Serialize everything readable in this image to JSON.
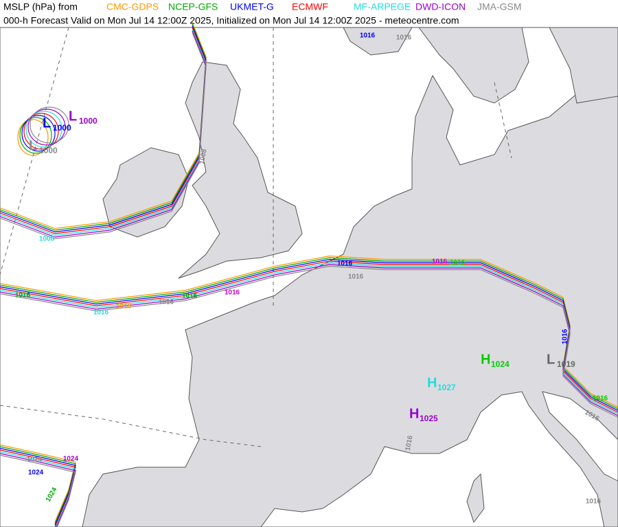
{
  "header": {
    "title": "MSLP (hPa) from",
    "models": [
      {
        "name": "CMC-GDPS",
        "color": "#ff9900"
      },
      {
        "name": "NCEP-GFS",
        "color": "#00aa00"
      },
      {
        "name": "UKMET-G",
        "color": "#0000ff"
      },
      {
        "name": "ECMWF",
        "color": "#ff0000"
      },
      {
        "name": "MF-ARPEGE",
        "color": "#22dddd"
      },
      {
        "name": "DWD-ICON",
        "color": "#9900cc"
      },
      {
        "name": "JMA-GSM",
        "color": "#888888"
      }
    ],
    "subtitle": "000-h Forecast Valid on Mon Jul 14 12:00Z 2025, Initialized on Mon Jul 14 12:00Z 2025 - meteocentre.com"
  },
  "centers": [
    {
      "symbol": "L",
      "value": 1000,
      "color": "#0000ff"
    },
    {
      "symbol": "L",
      "value": 1000,
      "color": "#9900cc"
    },
    {
      "symbol": "L",
      "value": 1000,
      "color": "#888888"
    },
    {
      "symbol": "H",
      "value": 1024,
      "color": "#00cc00"
    },
    {
      "symbol": "H",
      "value": 1027,
      "color": "#22dddd"
    },
    {
      "symbol": "H",
      "value": 1025,
      "color": "#9900cc"
    },
    {
      "symbol": "L",
      "value": 1019,
      "color": "#666666"
    }
  ],
  "contour_labels": [
    {
      "value": 1016,
      "color": "#0000ff"
    },
    {
      "value": 1016,
      "color": "#cc00cc"
    },
    {
      "value": 1016,
      "color": "#00cc00"
    },
    {
      "value": 1016,
      "color": "#888888"
    },
    {
      "value": 1016,
      "color": "#888888"
    },
    {
      "value": 1016,
      "color": "#00aa00"
    },
    {
      "value": 1016,
      "color": "#cc00cc"
    },
    {
      "value": 1016,
      "color": "#22dddd"
    },
    {
      "value": 1016,
      "color": "#00aa00"
    },
    {
      "value": 1016,
      "color": "#ff9900"
    },
    {
      "value": 1008,
      "color": "#22dddd"
    },
    {
      "value": 1008,
      "color": "#888888"
    },
    {
      "value": 1024,
      "color": "#0000ff"
    },
    {
      "value": 1024,
      "color": "#9900cc"
    },
    {
      "value": 1024,
      "color": "#00aa00"
    },
    {
      "value": 1024,
      "color": "#888888"
    },
    {
      "value": 1016,
      "color": "#0000ff"
    },
    {
      "value": 1016,
      "color": "#888888"
    },
    {
      "value": 1016,
      "color": "#888888"
    },
    {
      "value": 1016,
      "color": "#888888"
    },
    {
      "value": 1016,
      "color": "#00cc00"
    },
    {
      "value": 1016,
      "color": "#0000ff"
    },
    {
      "value": 1016,
      "color": "#888888"
    }
  ]
}
